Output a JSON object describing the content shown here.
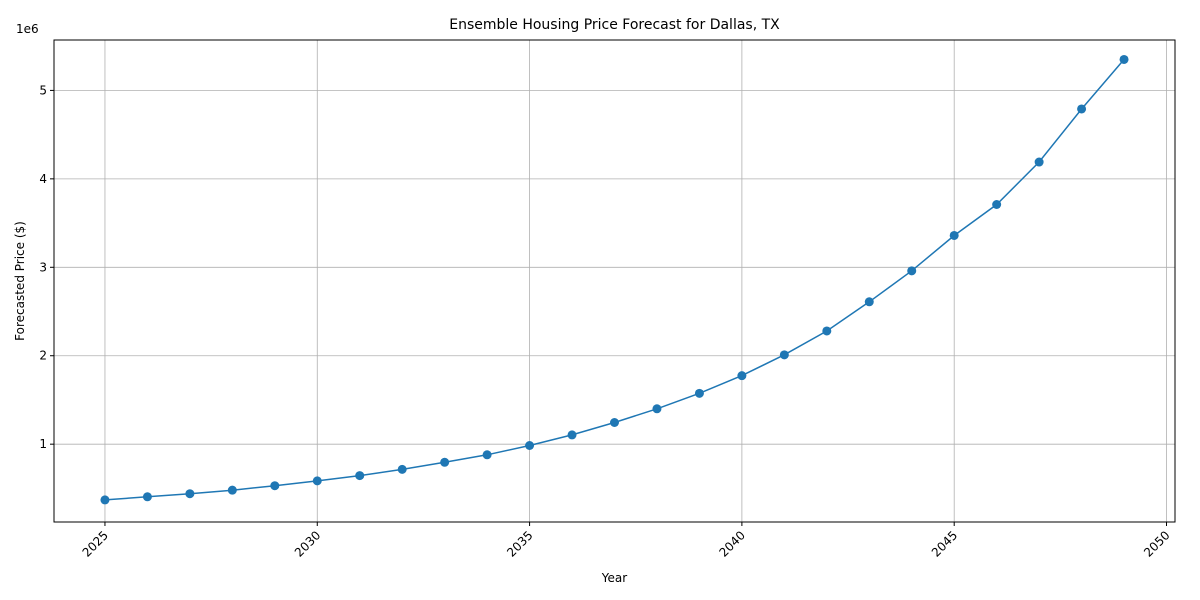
{
  "chart_data": {
    "type": "line",
    "title": "Ensemble Housing Price Forecast for Dallas, TX",
    "xlabel": "Year",
    "ylabel": "Forecasted Price ($)",
    "y_offset_label": "1e6",
    "xlim": [
      2023.8,
      2050.2
    ],
    "ylim": [
      120000,
      5570000
    ],
    "x_ticks": [
      2025,
      2030,
      2035,
      2040,
      2045,
      2050
    ],
    "y_ticks": [
      1000000,
      2000000,
      3000000,
      4000000,
      5000000
    ],
    "y_tick_labels": [
      "1",
      "2",
      "3",
      "4",
      "5"
    ],
    "grid": true,
    "x_tick_rotation": 45,
    "series": [
      {
        "color": "#1f77b4",
        "marker": "circle",
        "x": [
          2025,
          2026,
          2027,
          2028,
          2029,
          2030,
          2031,
          2032,
          2033,
          2034,
          2035,
          2036,
          2037,
          2038,
          2039,
          2040,
          2041,
          2042,
          2043,
          2044,
          2045,
          2046,
          2047,
          2048,
          2049
        ],
        "y": [
          370000,
          405000,
          440000,
          480000,
          530000,
          585000,
          645000,
          715000,
          795000,
          880000,
          985000,
          1105000,
          1245000,
          1400000,
          1575000,
          1775000,
          2010000,
          2280000,
          2610000,
          2960000,
          3360000,
          3710000,
          4190000,
          4790000,
          5350000
        ]
      }
    ]
  }
}
